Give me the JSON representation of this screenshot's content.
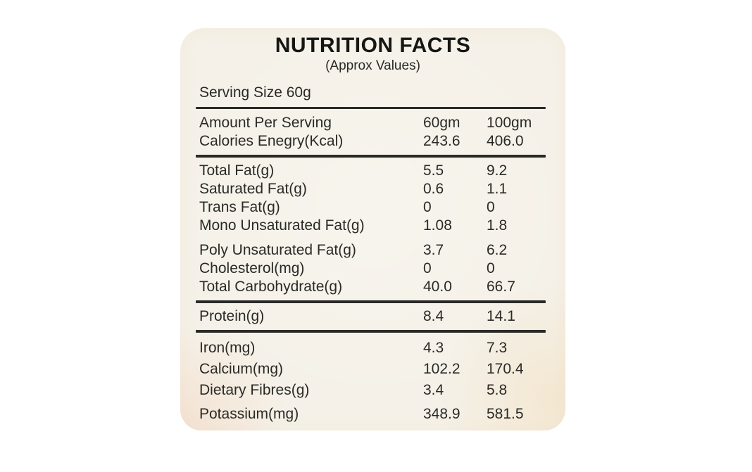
{
  "page": {
    "background_color": "#ffffff"
  },
  "label": {
    "title": "NUTRITION FACTS",
    "subtitle": "(Approx Values)",
    "serving_size": "Serving Size 60g",
    "background_color": "#f5f1e8",
    "text_color": "#2a2a27",
    "column_headers": [
      "60gm",
      "100gm"
    ],
    "sections": [
      {
        "name": "amount-per-serving",
        "rows": [
          {
            "name": "Amount Per Serving",
            "v1": "60gm",
            "v2": "100gm"
          },
          {
            "name": "Calories Enegry(Kcal)",
            "v1": "243.6",
            "v2": "406.0"
          }
        ]
      },
      {
        "name": "fats-cholesterol-carbs",
        "rows": [
          {
            "name": "Total Fat(g)",
            "v1": "5.5",
            "v2": "9.2"
          },
          {
            "name": "Saturated Fat(g)",
            "v1": "0.6",
            "v2": "1.1"
          },
          {
            "name": "Trans Fat(g)",
            "v1": "0",
            "v2": "0"
          },
          {
            "name": "Mono Unsaturated Fat(g)",
            "v1": "1.08",
            "v2": "1.8"
          },
          {
            "name": "Poly Unsaturated Fat(g)",
            "v1": "3.7",
            "v2": "6.2",
            "gap_before": true
          },
          {
            "name": "Cholesterol(mg)",
            "v1": "0",
            "v2": "0"
          },
          {
            "name": "Total Carbohydrate(g)",
            "v1": "40.0",
            "v2": "66.7"
          }
        ]
      },
      {
        "name": "protein",
        "rows": [
          {
            "name": "Protein(g)",
            "v1": "8.4",
            "v2": "14.1"
          }
        ]
      },
      {
        "name": "minerals-fibre",
        "rows": [
          {
            "name": "Iron(mg)",
            "v1": "4.3",
            "v2": "7.3"
          },
          {
            "name": "Calcium(mg)",
            "v1": "102.2",
            "v2": "170.4"
          },
          {
            "name": "Dietary Fibres(g)",
            "v1": "3.4",
            "v2": "5.8"
          },
          {
            "name": "Potassium(mg)",
            "v1": "348.9",
            "v2": "581.5",
            "gap_before": true
          }
        ]
      }
    ]
  }
}
